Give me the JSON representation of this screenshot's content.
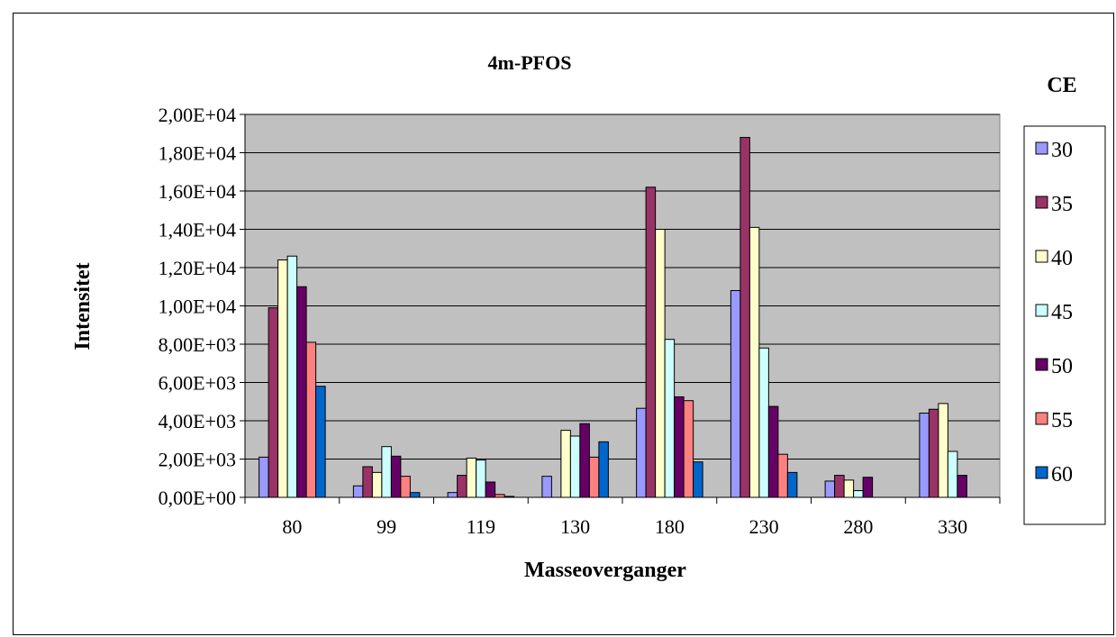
{
  "chart_data": {
    "type": "bar",
    "title": "4m-PFOS",
    "xlabel": "Masseoverganger",
    "ylabel": "Intensitet",
    "legend_title": "CE",
    "legend_position": "right",
    "grid": true,
    "ylim": [
      0,
      20000
    ],
    "y_ticks": [
      "0,00E+00",
      "2,00E+03",
      "4,00E+03",
      "6,00E+03",
      "8,00E+03",
      "1,00E+04",
      "1,20E+04",
      "1,40E+04",
      "1,60E+04",
      "1,80E+04",
      "2,00E+04"
    ],
    "categories": [
      "80",
      "99",
      "119",
      "130",
      "180",
      "230",
      "280",
      "330"
    ],
    "series": [
      {
        "name": "30",
        "color": "#9999ff",
        "values": [
          2100,
          600,
          250,
          1100,
          4650,
          10800,
          850,
          4400
        ]
      },
      {
        "name": "35",
        "color": "#993366",
        "values": [
          9900,
          1600,
          1150,
          0,
          16200,
          18800,
          1150,
          4600
        ]
      },
      {
        "name": "40",
        "color": "#ffffcc",
        "values": [
          12400,
          1300,
          2050,
          3500,
          14000,
          14100,
          900,
          4900
        ]
      },
      {
        "name": "45",
        "color": "#ccffff",
        "values": [
          12600,
          2650,
          1950,
          3200,
          8250,
          7800,
          350,
          2400
        ]
      },
      {
        "name": "50",
        "color": "#660066",
        "values": [
          11000,
          2150,
          800,
          3850,
          5250,
          4750,
          1050,
          1150
        ]
      },
      {
        "name": "55",
        "color": "#ff8080",
        "values": [
          8100,
          1100,
          150,
          2100,
          5050,
          2250,
          0,
          0
        ]
      },
      {
        "name": "60",
        "color": "#0066cc",
        "values": [
          5800,
          250,
          50,
          2900,
          1850,
          1300,
          0,
          0
        ]
      }
    ]
  }
}
